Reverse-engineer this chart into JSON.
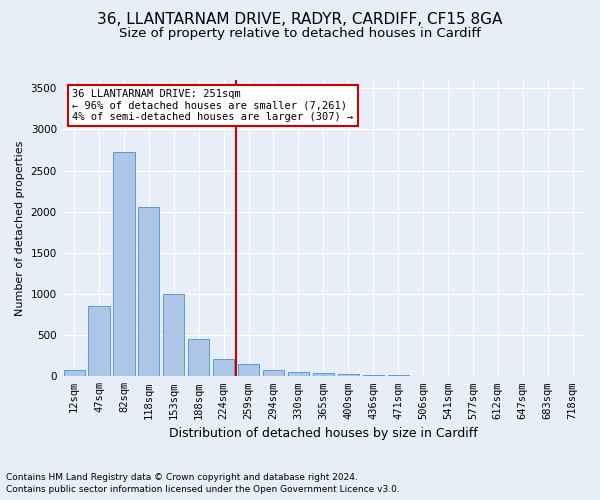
{
  "title_line1": "36, LLANTARNAM DRIVE, RADYR, CARDIFF, CF15 8GA",
  "title_line2": "Size of property relative to detached houses in Cardiff",
  "xlabel": "Distribution of detached houses by size in Cardiff",
  "ylabel": "Number of detached properties",
  "categories": [
    "12sqm",
    "47sqm",
    "82sqm",
    "118sqm",
    "153sqm",
    "188sqm",
    "224sqm",
    "259sqm",
    "294sqm",
    "330sqm",
    "365sqm",
    "400sqm",
    "436sqm",
    "471sqm",
    "506sqm",
    "541sqm",
    "577sqm",
    "612sqm",
    "647sqm",
    "683sqm",
    "718sqm"
  ],
  "values": [
    75,
    855,
    2720,
    2060,
    1000,
    450,
    215,
    150,
    75,
    55,
    40,
    30,
    15,
    10,
    5,
    3,
    2,
    1,
    1,
    1,
    1
  ],
  "bar_color": "#aec6e8",
  "bar_edge_color": "#5b9bd5",
  "vline_color": "#cc0000",
  "annotation_title": "36 LLANTARNAM DRIVE: 251sqm",
  "annotation_line1": "← 96% of detached houses are smaller (7,261)",
  "annotation_line2": "4% of semi-detached houses are larger (307) →",
  "annotation_box_color": "#ffffff",
  "annotation_box_edge_color": "#cc0000",
  "ylim": [
    0,
    3600
  ],
  "yticks": [
    0,
    500,
    1000,
    1500,
    2000,
    2500,
    3000,
    3500
  ],
  "footnote1": "Contains HM Land Registry data © Crown copyright and database right 2024.",
  "footnote2": "Contains public sector information licensed under the Open Government Licence v3.0.",
  "bg_color": "#e8eef7",
  "plot_bg_color": "#e8eef7",
  "grid_color": "#ffffff",
  "title1_fontsize": 11,
  "title2_fontsize": 9.5,
  "xlabel_fontsize": 9,
  "ylabel_fontsize": 8,
  "tick_fontsize": 7.5,
  "annotation_fontsize": 7.5,
  "footnote_fontsize": 6.5
}
